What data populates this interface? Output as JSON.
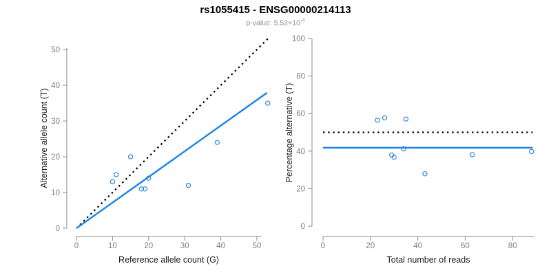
{
  "header": {
    "title": "rs1055415 - ENSG00000214113",
    "subtitle_prefix": "p-value: 5.52×10",
    "subtitle_exponent": "-4"
  },
  "colors": {
    "accent_blue": "#2086E2",
    "dotted_black": "#000000",
    "axis_line_gray": "#8a8a8a",
    "tick_label_gray": "#7d7d7d",
    "axis_title_dark": "#1c1c1c"
  },
  "chart_data": [
    {
      "type": "scatter",
      "title": "",
      "xlabel": "Reference allele count (G)",
      "ylabel": "Alternative allele count (T)",
      "xlim": [
        0,
        53
      ],
      "ylim": [
        0,
        53
      ],
      "xticks": [
        0,
        10,
        20,
        30,
        40,
        50
      ],
      "yticks": [
        0,
        10,
        20,
        30,
        40,
        50
      ],
      "grid": false,
      "legend": "none",
      "points": [
        {
          "x": 10,
          "y": 13
        },
        {
          "x": 11,
          "y": 15
        },
        {
          "x": 15,
          "y": 20
        },
        {
          "x": 18,
          "y": 11
        },
        {
          "x": 19,
          "y": 11
        },
        {
          "x": 20,
          "y": 14
        },
        {
          "x": 31,
          "y": 12
        },
        {
          "x": 39,
          "y": 24
        },
        {
          "x": 53,
          "y": 35
        }
      ],
      "lines": [
        {
          "name": "identity-line",
          "style": "dotted",
          "color": "#000000",
          "x1": 0,
          "y1": 0,
          "x2": 53.2,
          "y2": 53.2
        },
        {
          "name": "fitted-line",
          "style": "solid",
          "color": "#2086E2",
          "x1": 0,
          "y1": 0,
          "x2": 52.8,
          "y2": 37.9
        }
      ]
    },
    {
      "type": "scatter",
      "title": "",
      "xlabel": "Total number of reads",
      "ylabel": "Percentage alternative (T)",
      "xlim": [
        0,
        89
      ],
      "ylim": [
        0,
        100
      ],
      "xticks": [
        0,
        20,
        40,
        60,
        80
      ],
      "yticks": [
        0,
        20,
        40,
        60,
        80,
        100
      ],
      "grid": false,
      "legend": "none",
      "points": [
        {
          "x": 23,
          "y": 56.5
        },
        {
          "x": 26,
          "y": 57.7
        },
        {
          "x": 29,
          "y": 37.9
        },
        {
          "x": 30,
          "y": 36.7
        },
        {
          "x": 34,
          "y": 41.2
        },
        {
          "x": 35,
          "y": 57.1
        },
        {
          "x": 43,
          "y": 27.9
        },
        {
          "x": 63,
          "y": 38.1
        },
        {
          "x": 88,
          "y": 39.8
        }
      ],
      "lines": [
        {
          "name": "expected-50pct-line",
          "style": "dotted",
          "color": "#000000",
          "x1": 0,
          "y1": 50,
          "x2": 88.5,
          "y2": 50
        },
        {
          "name": "observed-mean-line",
          "style": "solid",
          "color": "#2086E2",
          "x1": 0,
          "y1": 41.8,
          "x2": 88.5,
          "y2": 41.8
        }
      ]
    }
  ]
}
